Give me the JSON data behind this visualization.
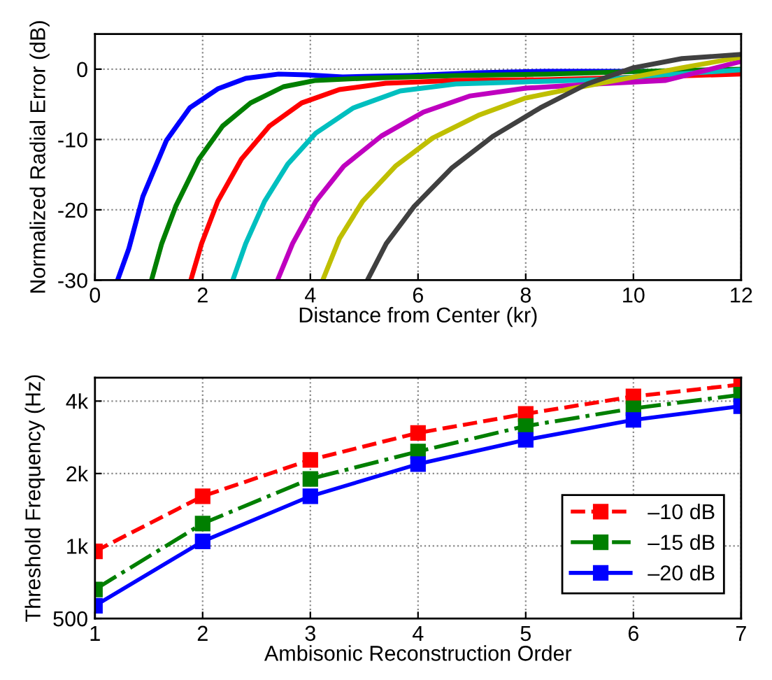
{
  "chart_data": [
    {
      "type": "line",
      "xlabel": "Distance from Center (kr)",
      "ylabel": "Normalized Radial Error (dB)",
      "xlim": [
        0,
        12
      ],
      "ylim": [
        -30,
        5
      ],
      "xticks": [
        0,
        2,
        4,
        6,
        8,
        10,
        12
      ],
      "yticks": [
        -30,
        -20,
        -10,
        0
      ],
      "grid": true,
      "legend": false,
      "marker": "none",
      "line_style": "solid",
      "series": [
        {
          "color": "#0000ff",
          "x": [
            0.42,
            0.63,
            0.89,
            1.33,
            1.76,
            2.28,
            2.8,
            3.41,
            3.93,
            4.6,
            5.84,
            7.1,
            8.4,
            10.2
          ],
          "values": [
            -30,
            -25.5,
            -18.1,
            -10.1,
            -5.5,
            -2.8,
            -1.3,
            -0.7,
            -0.8,
            -1.1,
            -0.9,
            -0.5,
            -0.3,
            -0.3
          ]
        },
        {
          "color": "#007f00",
          "x": [
            1.05,
            1.24,
            1.5,
            1.93,
            2.37,
            2.89,
            3.5,
            4.1,
            4.97,
            6.7,
            8.4,
            10.2,
            12
          ],
          "values": [
            -30,
            -24.8,
            -19.5,
            -12.8,
            -8.1,
            -4.8,
            -2.5,
            -1.6,
            -1.3,
            -0.9,
            -0.7,
            -0.3,
            0
          ]
        },
        {
          "color": "#ff0000",
          "x": [
            1.78,
            1.98,
            2.28,
            2.72,
            3.24,
            3.84,
            4.54,
            5.4,
            6.7,
            8.4,
            10.2,
            12
          ],
          "values": [
            -30,
            -24.8,
            -18.8,
            -12.8,
            -8.1,
            -4.8,
            -2.9,
            -2,
            -1.6,
            -1.5,
            -1.1,
            -0.7
          ]
        },
        {
          "color": "#00bfbf",
          "x": [
            2.56,
            2.8,
            3.15,
            3.58,
            4.1,
            4.8,
            5.67,
            6.7,
            8.0,
            9.31,
            10.6,
            12
          ],
          "values": [
            -30,
            -24.8,
            -18.8,
            -13.5,
            -9.1,
            -5.5,
            -3.1,
            -2.1,
            -1.8,
            -1.5,
            -0.8,
            -0.1
          ]
        },
        {
          "color": "#bf00bf",
          "x": [
            3.39,
            3.67,
            4.1,
            4.62,
            5.32,
            6.1,
            6.97,
            8.0,
            9.31,
            10.6,
            12
          ],
          "values": [
            -30,
            -24.8,
            -18.8,
            -13.8,
            -9.5,
            -6.1,
            -3.8,
            -2.7,
            -2.1,
            -1.6,
            1.1
          ]
        },
        {
          "color": "#bfbf00",
          "x": [
            4.23,
            4.54,
            4.97,
            5.58,
            6.27,
            7.14,
            8.0,
            8.9,
            9.75,
            10.9,
            12
          ],
          "values": [
            -30,
            -24.1,
            -18.8,
            -13.8,
            -9.8,
            -6.5,
            -4.1,
            -2.7,
            -1.5,
            0.2,
            1.7
          ]
        },
        {
          "color": "#404040",
          "x": [
            5.06,
            5.41,
            5.93,
            6.62,
            7.4,
            8.27,
            9.14,
            10.0,
            10.9,
            12
          ],
          "values": [
            -30,
            -24.8,
            -19.5,
            -14.1,
            -9.5,
            -5.5,
            -2.1,
            0.2,
            1.5,
            2.1
          ]
        }
      ]
    },
    {
      "type": "line",
      "xlabel": "Ambisonic Reconstruction Order",
      "ylabel": "Threshold Frequency (Hz)",
      "log": "y",
      "xlim": [
        1,
        7
      ],
      "ylim": [
        500,
        5000
      ],
      "xticks": [
        1,
        2,
        3,
        4,
        5,
        6,
        7
      ],
      "yticks": [
        500,
        {
          "value": 1000,
          "label": "1k"
        },
        {
          "value": 2000,
          "label": "2k"
        },
        {
          "value": 4000,
          "label": "4k"
        }
      ],
      "grid": true,
      "legend": "bottom right",
      "marker": "square",
      "x": [
        1,
        2,
        3,
        4,
        5,
        6,
        7
      ],
      "series": [
        {
          "name": "–10 dB",
          "color": "#ff0000",
          "line_style": "dashed",
          "values": [
            950,
            1610,
            2280,
            2950,
            3540,
            4180,
            4690
          ]
        },
        {
          "name": "–15 dB",
          "color": "#007f00",
          "line_style": "dashdot",
          "values": [
            660,
            1240,
            1900,
            2470,
            3150,
            3730,
            4250
          ]
        },
        {
          "name": "–20 dB",
          "color": "#0000ff",
          "line_style": "solid",
          "values": [
            565,
            1045,
            1610,
            2190,
            2760,
            3340,
            3810
          ]
        }
      ]
    }
  ]
}
